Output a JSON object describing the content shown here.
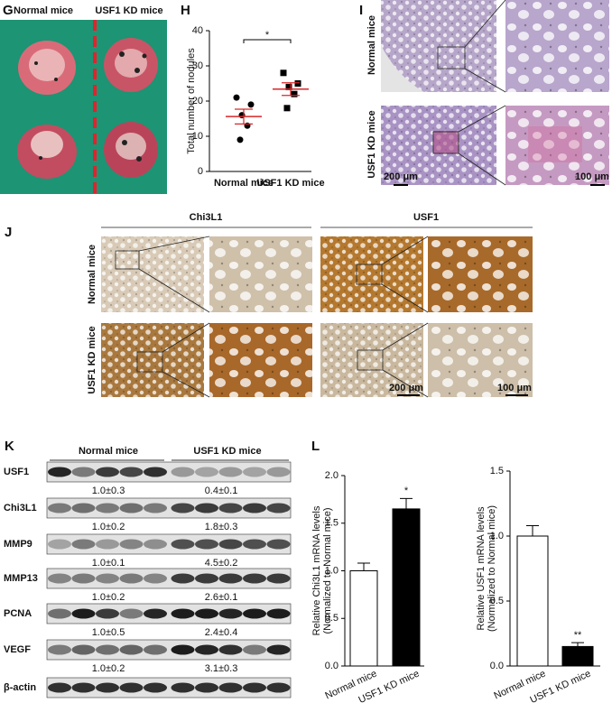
{
  "panel_labels": [
    "G",
    "H",
    "I",
    "J",
    "K",
    "L"
  ],
  "panel_g": {
    "labels": [
      "Normal mice",
      "USF1 KD mice"
    ]
  },
  "panel_i": {
    "row_labels": [
      "Normal mice",
      "USF1 KD mice"
    ],
    "scale_bars": [
      "200 μm",
      "100 μm"
    ]
  },
  "panel_j": {
    "column_labels": [
      "Chi3L1",
      "USF1"
    ],
    "row_labels": [
      "Normal mice",
      "USF1 KD mice"
    ],
    "scale_bars": [
      "200 μm",
      "100 μm"
    ]
  },
  "panel_k": {
    "groups": [
      "Normal mice",
      "USF1 KD mice"
    ],
    "rows": [
      {
        "label": "USF1",
        "quant": [
          "1.0±0.3",
          "0.4±0.1"
        ]
      },
      {
        "label": "Chi3L1",
        "quant": [
          "1.0±0.2",
          "1.8±0.3"
        ]
      },
      {
        "label": "MMP9",
        "quant": [
          "1.0±0.1",
          "4.5±0.2"
        ]
      },
      {
        "label": "MMP13",
        "quant": [
          "1.0±0.2",
          "2.6±0.1"
        ]
      },
      {
        "label": "PCNA",
        "quant": [
          "1.0±0.5",
          "2.4±0.4"
        ]
      },
      {
        "label": "VEGF",
        "quant": [
          "1.0±0.2",
          "3.1±0.3"
        ]
      },
      {
        "label": "β-actin"
      }
    ]
  },
  "chart_data": [
    {
      "type": "dot",
      "ylabel": "Total number of nodules",
      "categories": [
        "Normal mice",
        "USF1 KD mice"
      ],
      "points": [
        [
          21,
          19,
          16,
          13,
          9
        ],
        [
          28,
          25,
          24,
          22,
          18
        ]
      ],
      "markers": [
        "circle",
        "square"
      ],
      "means": [
        15.6,
        23.4
      ],
      "errors": [
        2.1,
        1.8
      ],
      "color": "#000000",
      "mean_color": "#d62728",
      "annotation": "*",
      "ylim": [
        0,
        40
      ],
      "yticks": [
        0,
        10,
        20,
        30,
        40
      ]
    },
    {
      "type": "bar",
      "ylabel": [
        "Relative Chi3L1 mRNA levels",
        "(Normalized to Normal mice)"
      ],
      "categories": [
        "Normal mice",
        "USF1 KD mice"
      ],
      "values": [
        1.0,
        1.65
      ],
      "errors": [
        0.08,
        0.11
      ],
      "colors": [
        "#ffffff",
        "#000000"
      ],
      "annotation": "*",
      "annotated_index": 1,
      "ylim": [
        0,
        2
      ],
      "yticks": [
        {
          "value": 0,
          "label": "0.0"
        },
        0.5,
        {
          "value": 1,
          "label": "1.0"
        },
        1.5,
        {
          "value": 2,
          "label": "2.0"
        }
      ]
    },
    {
      "type": "bar",
      "ylabel": [
        "Relative USF1 mRNA levels",
        "(Normalized to Normal mice)"
      ],
      "categories": [
        "Normal mice",
        "USF1 KD mice"
      ],
      "values": [
        1.0,
        0.15
      ],
      "errors": [
        0.08,
        0.03
      ],
      "colors": [
        "#ffffff",
        "#000000"
      ],
      "annotation": "**",
      "annotated_index": 1,
      "ylim": [
        0,
        1.5
      ],
      "yticks": [
        {
          "value": 0,
          "label": "0.0"
        },
        0.5,
        {
          "value": 1,
          "label": "1.0"
        },
        1.5
      ]
    }
  ]
}
